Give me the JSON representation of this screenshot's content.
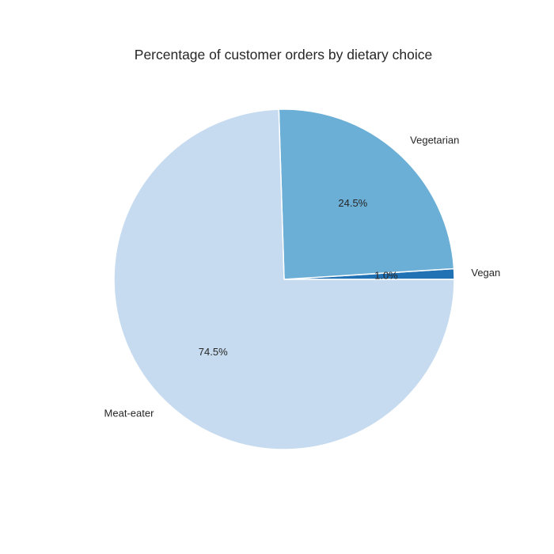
{
  "chart_data": {
    "type": "pie",
    "title": "Percentage of customer orders by dietary choice",
    "categories": [
      "Vegan",
      "Vegetarian",
      "Meat-eater"
    ],
    "values": [
      1.0,
      24.5,
      74.5
    ],
    "value_labels": [
      "1.0%",
      "24.5%",
      "74.5%"
    ],
    "colors": [
      "#2171b5",
      "#6baed6",
      "#c6dbef"
    ],
    "start_angle": 0,
    "direction": "counterclockwise",
    "legend": "none"
  }
}
